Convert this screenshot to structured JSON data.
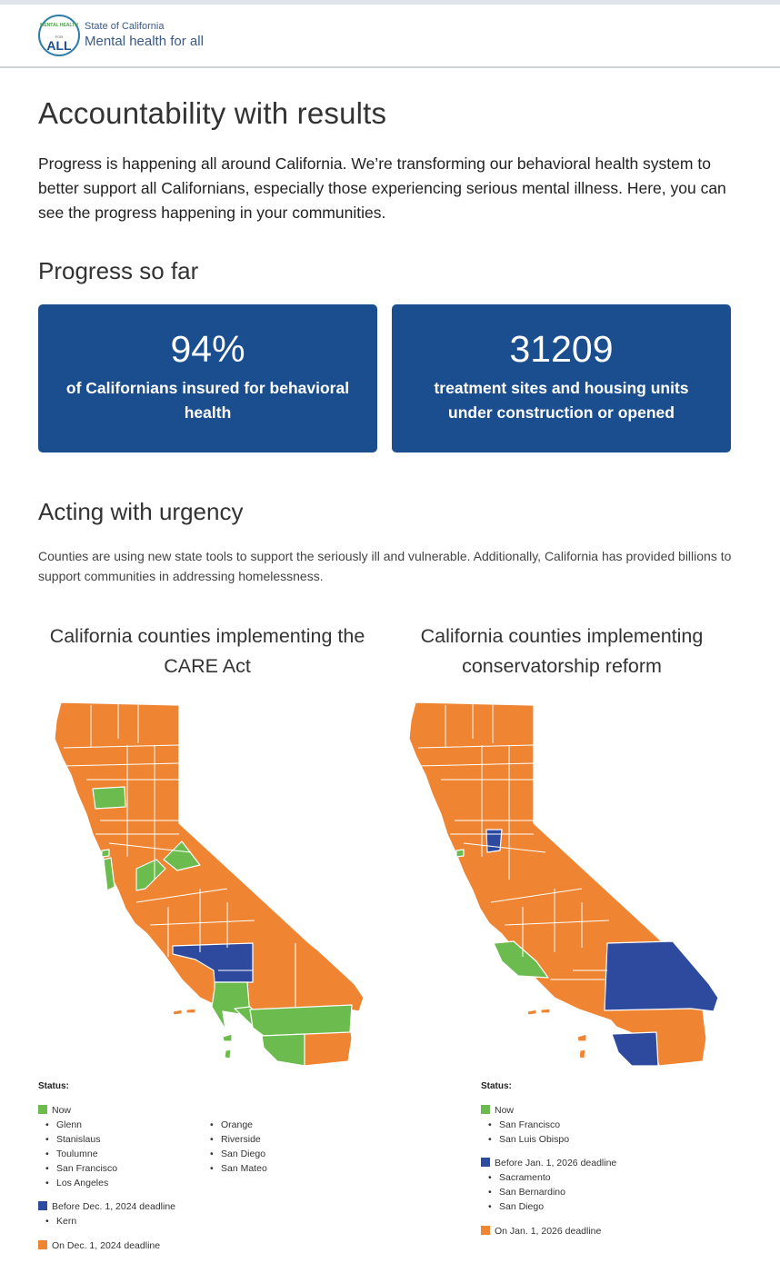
{
  "header": {
    "logo_line1": "MENTAL HEALTH",
    "logo_line2": "FOR",
    "logo_line3": "ALL",
    "brand_top": "State of California",
    "brand_main": "Mental health for all"
  },
  "page_title": "Accountability with results",
  "intro": "Progress is happening all around California. We’re transforming our behavioral health system to better support all Californians, especially those experiencing serious mental illness. Here, you can see the progress happening in your communities.",
  "progress": {
    "heading": "Progress so far",
    "stats": [
      {
        "value": "94%",
        "label": "of Californians insured for behavioral health"
      },
      {
        "value": "31209",
        "label": "treatment sites and housing units under construction or opened"
      }
    ]
  },
  "urgency": {
    "heading": "Acting with urgency",
    "body": "Counties are using new state tools to support the seriously ill and vulnerable. Additionally, California has provided billions to support communities in addressing homelessness."
  },
  "colors": {
    "now": "#6cbb4e",
    "before": "#2e4a9e",
    "on_deadline": "#ef8532",
    "card": "#1a4e8e"
  },
  "care_map": {
    "title": "California counties implementing the CARE Act",
    "status_label": "Status:",
    "now_label": "Now",
    "now_counties_col1": [
      "Glenn",
      "Stanislaus",
      "Toulumne",
      "San Francisco",
      "Los Angeles"
    ],
    "now_counties_col2": [
      "Orange",
      "Riverside",
      "San Diego",
      "San Mateo"
    ],
    "before_label": "Before Dec. 1, 2024 deadline",
    "before_counties": [
      "Kern"
    ],
    "on_label": "On Dec. 1, 2024 deadline"
  },
  "conservatorship_map": {
    "title": "California counties implementing conservatorship reform",
    "status_label": "Status:",
    "now_label": "Now",
    "now_counties": [
      "San Francisco",
      "San Luis Obispo"
    ],
    "before_label": "Before Jan. 1, 2026 deadline",
    "before_counties": [
      "Sacramento",
      "San Bernardino",
      "San Diego"
    ],
    "on_label": "On Jan. 1, 2026 deadline"
  }
}
